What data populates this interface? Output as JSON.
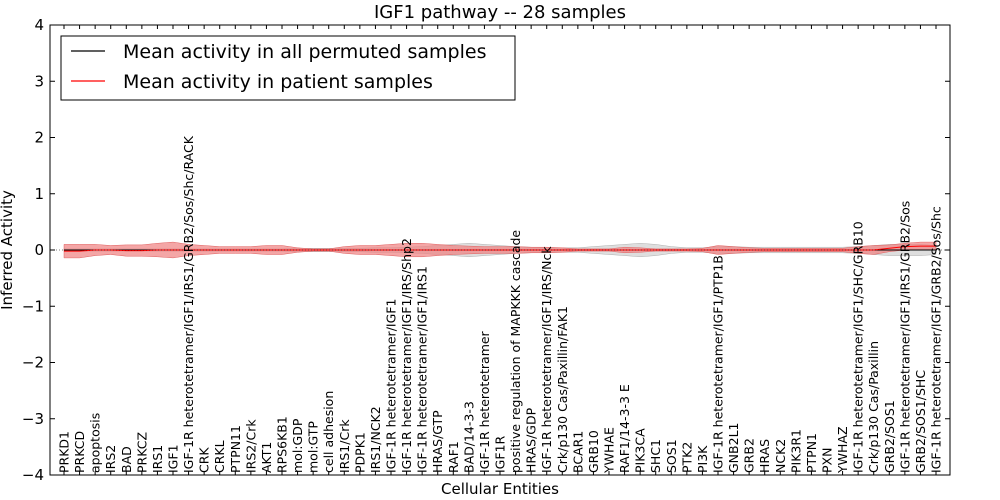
{
  "chart_data": {
    "type": "line",
    "title": "IGF1 pathway -- 28 samples",
    "xlabel": "Cellular Entities",
    "ylabel": "Inferred Activity",
    "ylim": [
      -4,
      4
    ],
    "yticks": [
      -4,
      -3,
      -2,
      -1,
      0,
      1,
      2,
      3,
      4
    ],
    "ytick_labels": [
      "−4",
      "−3",
      "−2",
      "−1",
      "0",
      "1",
      "2",
      "3",
      "4"
    ],
    "legend": {
      "position": "top-left",
      "entries": [
        {
          "label": "Mean activity in all permuted samples",
          "color": "#000000"
        },
        {
          "label": "Mean activity in patient samples",
          "color": "#ff0000"
        }
      ]
    },
    "categories": [
      "PRKD1",
      "PRKCD",
      "apoptosis",
      "IRS2",
      "BAD",
      "PRKCZ",
      "IRS1",
      "IGF1",
      "IGF-1R heterotetramer/IGF1/IRS1/GRB2/Sos/Shc/RACK",
      "CRK",
      "CRKL",
      "PTPN11",
      "IRS2/Crk",
      "AKT1",
      "RPS6KB1",
      "mol:GDP",
      "mol:GTP",
      "cell adhesion",
      "IRS1/Crk",
      "PDPK1",
      "IRS1/NCK2",
      "IGF-1R heterotetramer/IGF1",
      "IGF-1R heterotetramer/IGF1/IRS/Shp2",
      "IGF-1R heterotetramer/IGF1/IRS1",
      "HRAS/GTP",
      "RAF1",
      "BAD/14-3-3",
      "IGF-1R heterotetramer",
      "IGF1R",
      "positive regulation of MAPKKK cascade",
      "HRAS/GDP",
      "IGF-1R heterotetramer/IGF1/IRS/Nck",
      "Crk/p130 Cas/Paxillin/FAK1",
      "BCAR1",
      "GRB10",
      "YWHAE",
      "RAF1/14-3-3 E",
      "PIK3CA",
      "SHC1",
      "SOS1",
      "PTK2",
      "PI3K",
      "IGF-1R heterotetramer/IGF1/PTP1B",
      "GNB2L1",
      "GRB2",
      "HRAS",
      "NCK2",
      "PIK3R1",
      "PTPN1",
      "PXN",
      "YWHAZ",
      "IGF-1R heterotetramer/IGF1/SHC/GRB10",
      "Crk/p130 Cas/Paxillin",
      "GRB2/SOS1",
      "IGF-1R heterotetramer/IGF1/IRS1/GRB2/Sos",
      "GRB2/SOS1/SHC",
      "IGF-1R heterotetramer/IGF1/GRB2/Sos/Shc"
    ],
    "series": [
      {
        "name": "Mean activity in all permuted samples",
        "color": "#000000",
        "values": [
          0,
          0,
          0,
          0,
          0,
          0,
          0,
          0,
          0,
          0,
          0,
          0,
          0,
          0,
          0,
          0,
          0,
          0,
          0,
          0,
          0,
          0,
          0,
          0,
          0,
          0,
          0,
          0,
          0,
          0,
          0,
          0,
          0,
          0,
          0,
          0,
          0,
          0,
          0,
          0,
          0,
          0,
          0,
          0,
          0,
          0,
          0,
          0,
          0,
          0,
          0,
          0,
          0,
          0,
          0,
          0,
          0
        ],
        "band": [
          0.02,
          0.02,
          0.02,
          0.02,
          0.02,
          0.02,
          0.02,
          0.02,
          0.02,
          0.02,
          0.02,
          0.02,
          0.02,
          0.02,
          0.02,
          0.03,
          0.03,
          0.03,
          0.03,
          0.03,
          0.04,
          0.04,
          0.05,
          0.06,
          0.08,
          0.1,
          0.12,
          0.1,
          0.08,
          0.06,
          0.05,
          0.04,
          0.04,
          0.04,
          0.06,
          0.08,
          0.1,
          0.12,
          0.1,
          0.06,
          0.04,
          0.04,
          0.06,
          0.06,
          0.05,
          0.05,
          0.05,
          0.05,
          0.05,
          0.05,
          0.05,
          0.06,
          0.08,
          0.1,
          0.1,
          0.1,
          0.08
        ],
        "fill": "#c8c8c8"
      },
      {
        "name": "Mean activity in patient samples",
        "color": "#ff0000",
        "values": [
          -0.02,
          -0.02,
          0.0,
          0.0,
          -0.01,
          -0.01,
          0.0,
          0.0,
          0.0,
          0.0,
          0.0,
          0.0,
          0.0,
          0.0,
          0.0,
          0.0,
          0.0,
          0.0,
          0.0,
          0.0,
          0.0,
          0.0,
          0.0,
          0.0,
          0.0,
          0.0,
          0.0,
          0.0,
          0.0,
          0.0,
          0.0,
          0.0,
          0.0,
          0.0,
          0.0,
          0.0,
          0.0,
          0.0,
          0.0,
          0.0,
          0.0,
          0.0,
          0.0,
          0.0,
          0.0,
          0.0,
          0.0,
          0.0,
          0.0,
          0.0,
          0.0,
          0.0,
          0.0,
          0.03,
          0.06,
          0.07,
          0.07
        ],
        "band": [
          0.12,
          0.12,
          0.1,
          0.08,
          0.1,
          0.1,
          0.12,
          0.14,
          0.1,
          0.08,
          0.06,
          0.06,
          0.06,
          0.08,
          0.08,
          0.04,
          0.02,
          0.02,
          0.06,
          0.08,
          0.08,
          0.1,
          0.12,
          0.12,
          0.1,
          0.08,
          0.07,
          0.06,
          0.06,
          0.06,
          0.05,
          0.05,
          0.04,
          0.02,
          0.02,
          0.02,
          0.05,
          0.04,
          0.02,
          0.02,
          0.02,
          0.03,
          0.08,
          0.06,
          0.04,
          0.03,
          0.03,
          0.03,
          0.03,
          0.03,
          0.03,
          0.06,
          0.08,
          0.06,
          0.06,
          0.07,
          0.07
        ],
        "fill": "#f08080"
      }
    ]
  }
}
